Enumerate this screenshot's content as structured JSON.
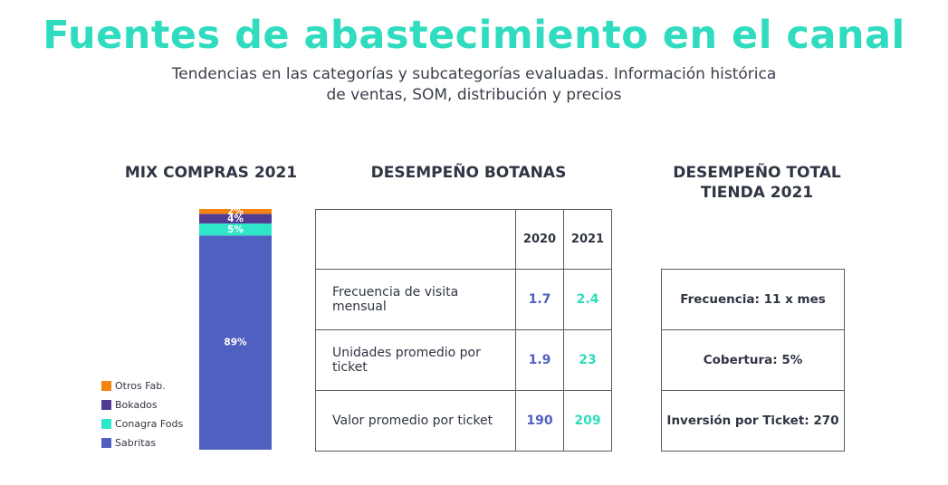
{
  "header": {
    "title": "Fuentes de abastecimiento en el canal",
    "subtitle_line1": "Tendencias en las categorías y subcategorías evaluadas. Información histórica",
    "subtitle_line2": "de ventas, SOM, distribución y precios"
  },
  "sections": {
    "mix": "MIX COMPRAS 2021",
    "botanas": "DESEMPEÑO BOTANAS",
    "tienda_line1": "DESEMPEÑO TOTAL",
    "tienda_line2": "TIENDA 2021"
  },
  "chart_data": {
    "type": "bar",
    "stacked": true,
    "title": "MIX COMPRAS 2021",
    "unit": "%",
    "series": [
      {
        "name": "Sabritas",
        "value": 89,
        "label": "89%",
        "color": "#5060c0"
      },
      {
        "name": "Conagra Fods",
        "value": 5,
        "label": "5%",
        "color": "#2ee6c8"
      },
      {
        "name": "Bokados",
        "value": 4,
        "label": "4%",
        "color": "#523c93"
      },
      {
        "name": "Otros Fab.",
        "value": 2,
        "label": "2%",
        "color": "#f7820f"
      }
    ],
    "legend_position": "left"
  },
  "legend": [
    {
      "label": "Otros Fab.",
      "color": "#f7820f"
    },
    {
      "label": "Bokados",
      "color": "#523c93"
    },
    {
      "label": "Conagra Fods",
      "color": "#2ee6c8"
    },
    {
      "label": "Sabritas",
      "color": "#5060c0"
    }
  ],
  "botanas_table": {
    "years": [
      "2020",
      "2021"
    ],
    "rows": [
      {
        "label": "Frecuencia de visita mensual",
        "v2020": "1.7",
        "v2021": "2.4"
      },
      {
        "label": "Unidades promedio por ticket",
        "v2020": "1.9",
        "v2021": "23"
      },
      {
        "label": "Valor promedio por ticket",
        "v2020": "190",
        "v2021": "209"
      }
    ]
  },
  "tienda_table": {
    "rows": [
      "Frecuencia: 11 x mes",
      "Cobertura: 5%",
      "Inversión por Ticket: 270"
    ]
  },
  "colors": {
    "accent": "#2fdcbf",
    "value_2020": "#4f5fc1",
    "value_2021": "#2fdcbf"
  }
}
